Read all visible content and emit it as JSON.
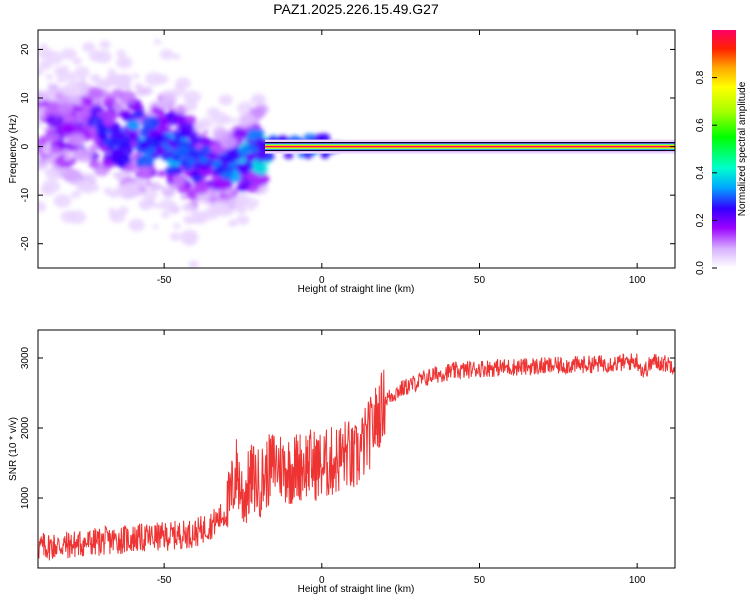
{
  "title": "PAZ1.2025.226.15.49.G27",
  "chart_data": [
    {
      "type": "heatmap",
      "xlabel": "Height of straight line (km)",
      "ylabel": "Frequency (Hz)",
      "xlim": [
        -90,
        112
      ],
      "ylim": [
        -25,
        24
      ],
      "x_ticks": [
        -50,
        0,
        50,
        100
      ],
      "y_ticks": [
        -20,
        -10,
        0,
        10,
        20
      ],
      "colorbar": {
        "label": "Normalized spectral amplitude",
        "range": [
          0.0,
          1.0
        ],
        "ticks": [
          0.0,
          0.2,
          0.4,
          0.6,
          0.8
        ],
        "tick_labels": [
          "0.0",
          "0.2",
          "0.4",
          "0.6",
          "0.8"
        ],
        "colors": [
          "#ffffff",
          "#d9b3ff",
          "#9900ff",
          "#3300ff",
          "#00aaff",
          "#00ffcc",
          "#00ff00",
          "#aaff00",
          "#ffff00",
          "#ffaa00",
          "#ff2200",
          "#ff0066"
        ]
      },
      "ridge": {
        "description_free": true,
        "x": [
          -90,
          -80,
          -70,
          -60,
          -50,
          -40,
          -30,
          -25,
          -20,
          -15,
          -10,
          0,
          20,
          50,
          100,
          112
        ],
        "frequency": [
          4,
          3,
          2.5,
          1.5,
          0.5,
          -3,
          -4,
          -3,
          -1,
          0,
          0,
          0,
          0,
          0,
          0,
          0
        ],
        "amplitude": [
          0.15,
          0.2,
          0.25,
          0.3,
          0.3,
          0.3,
          0.3,
          0.35,
          0.45,
          0.6,
          0.8,
          0.95,
          0.95,
          0.95,
          0.95,
          0.95
        ]
      }
    },
    {
      "type": "line",
      "xlabel": "Height of straight line (km)",
      "ylabel": "SNR (10 * v/v)",
      "xlim": [
        -90,
        112
      ],
      "ylim": [
        0,
        3400
      ],
      "x_ticks": [
        -50,
        0,
        50,
        100
      ],
      "y_ticks": [
        1000,
        2000,
        3000
      ],
      "color": "#ee3333",
      "x": [
        -90,
        -80,
        -70,
        -60,
        -50,
        -40,
        -35,
        -30,
        -27,
        -25,
        -22,
        -20,
        -15,
        -10,
        -5,
        0,
        5,
        8,
        10,
        15,
        18,
        20,
        25,
        30,
        35,
        40,
        50,
        60,
        70,
        80,
        90,
        95,
        100,
        102,
        105,
        112
      ],
      "values": [
        300,
        330,
        380,
        420,
        450,
        500,
        620,
        800,
        1400,
        1000,
        1300,
        1200,
        1500,
        1400,
        1500,
        1450,
        1550,
        1650,
        1500,
        1900,
        2200,
        2400,
        2550,
        2650,
        2750,
        2800,
        2850,
        2870,
        2880,
        2900,
        2920,
        2930,
        2960,
        2800,
        2950,
        2900
      ]
    }
  ]
}
